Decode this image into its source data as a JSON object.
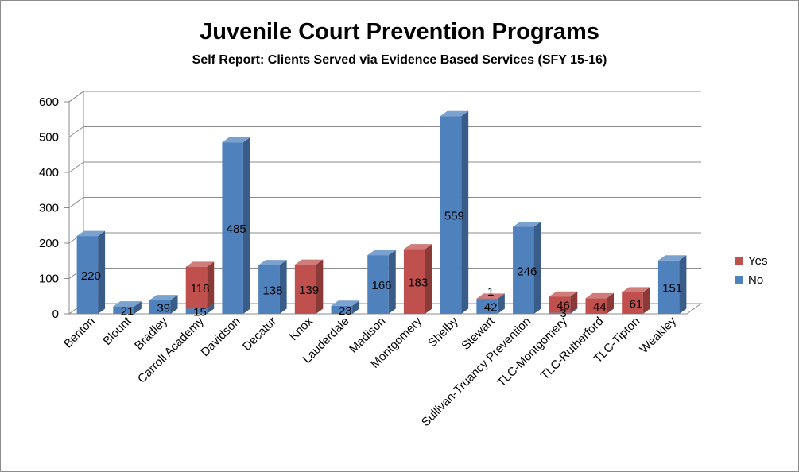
{
  "chart_data": {
    "type": "bar",
    "title": "Juvenile Court Prevention Programs",
    "subtitle": "Self Report:  Clients Served via Evidence Based Services (SFY 15-16)",
    "stacked": true,
    "style": "3d-column",
    "categories": [
      "Benton",
      "Blount",
      "Bradley",
      "Carroll Academy",
      "Davidson",
      "Decatur",
      "Knox",
      "Lauderdale",
      "Madison",
      "Montgomery",
      "Shelby",
      "Stewart",
      "Sullivan-Truancy Prevention",
      "TLC-Montgomery",
      "TLC-Rutherford",
      "TLC-Tipton",
      "Weakley"
    ],
    "series": [
      {
        "name": "No",
        "color": "#4f81bd",
        "values": [
          220,
          21,
          39,
          15,
          485,
          138,
          null,
          23,
          166,
          null,
          559,
          42,
          246,
          3,
          null,
          null,
          151
        ]
      },
      {
        "name": "Yes",
        "color": "#c0504d",
        "values": [
          null,
          null,
          null,
          118,
          null,
          null,
          139,
          null,
          null,
          183,
          null,
          1,
          null,
          46,
          44,
          61,
          null
        ]
      }
    ],
    "yticks": [
      0,
      100,
      200,
      300,
      400,
      500,
      600
    ],
    "ylim": [
      0,
      600
    ],
    "grid": true,
    "legend": "right"
  }
}
